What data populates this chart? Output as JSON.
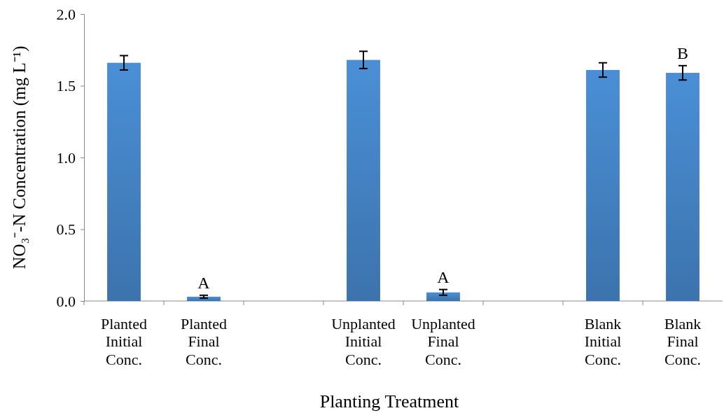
{
  "chart_data": {
    "type": "bar",
    "xlabel": "Planting Treatment",
    "ylabel": "NO₃⁻-N Concentration (mg L⁻¹)",
    "categories": [
      "Planted Initial Conc.",
      "Planted Final Conc.",
      null,
      "Unplanted Initial Conc.",
      "Unplanted Final Conc.",
      null,
      "Blank Initial Conc.",
      "Blank Final Conc."
    ],
    "values": [
      1.66,
      0.03,
      null,
      1.68,
      0.06,
      null,
      1.61,
      1.59
    ],
    "errors": [
      0.05,
      0.01,
      null,
      0.06,
      0.02,
      null,
      0.05,
      0.05
    ],
    "color": "#4a8fd6",
    "ylim": [
      0,
      2
    ],
    "yticks": [
      {
        "value": 0,
        "label": "0.0"
      },
      {
        "value": 0.5,
        "label": "0.5"
      },
      {
        "value": 1,
        "label": "1.0"
      },
      {
        "value": 1.5,
        "label": "1.5"
      },
      {
        "value": 2,
        "label": "2.0"
      }
    ],
    "grid": false,
    "annotations": [
      {
        "text": "A",
        "x": "Planted Final Conc.",
        "y": 0.04
      },
      {
        "text": "A",
        "x": "Unplanted Final Conc.",
        "y": 0.08
      },
      {
        "text": "B",
        "x": "Blank Final Conc.",
        "y": 1.64
      }
    ]
  }
}
